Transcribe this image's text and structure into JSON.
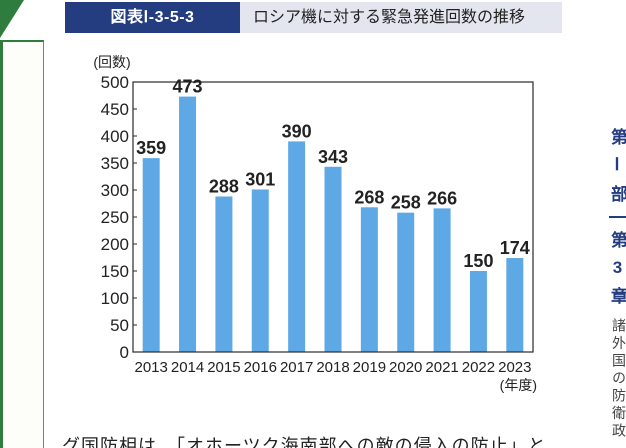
{
  "figure": {
    "number": "図表Ⅰ-3-5-3"
  },
  "chart_data": {
    "type": "bar",
    "title": "ロシア機に対する緊急発進回数の推移",
    "categories": [
      "2013",
      "2014",
      "2015",
      "2016",
      "2017",
      "2018",
      "2019",
      "2020",
      "2021",
      "2022",
      "2023"
    ],
    "values": [
      359,
      473,
      288,
      301,
      390,
      343,
      268,
      258,
      266,
      150,
      174
    ],
    "ylabel": "(回数)",
    "xlabel": "(年度)",
    "ylim": [
      0,
      500
    ],
    "yticks": [
      0,
      50,
      100,
      150,
      200,
      250,
      300,
      350,
      400,
      450,
      500
    ],
    "data_labels": true,
    "grid": false
  },
  "side_tab": {
    "part": "第Ⅰ部",
    "chapter": "第3章",
    "section": "諸外国の防衛政"
  },
  "body": {
    "text": "グ国防相は、「オホーツク海南部への敵の侵入の防止」と"
  },
  "colors": {
    "bar": "#5fa8e6",
    "figure_number_bg": "#233d80",
    "title_bg": "#e3e5ef",
    "side_tab": "#233d80",
    "accent_green": "#2e7d3e"
  }
}
